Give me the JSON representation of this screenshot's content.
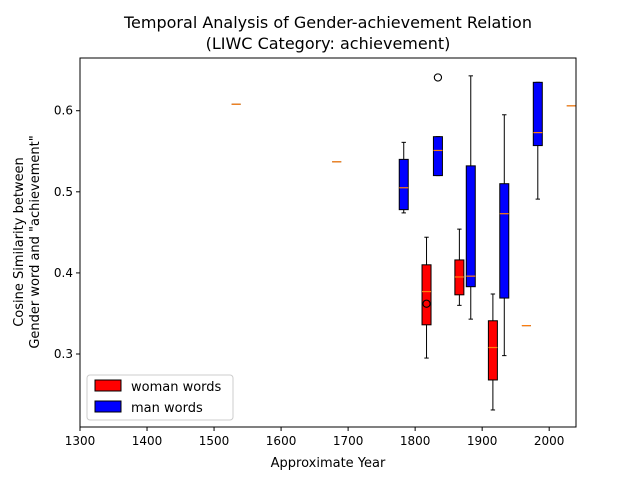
{
  "chart_data": {
    "type": "boxplot",
    "title_line1": "Temporal Analysis of Gender-achievement Relation",
    "title_line2": "(LIWC Category: achievement)",
    "xlabel": "Approximate Year",
    "ylabel_line1": "Cosine Similarity between",
    "ylabel_line2": "Gender word and \"achievement\"",
    "xlim": [
      1300,
      2040
    ],
    "ylim": [
      0.21,
      0.665
    ],
    "xticks": [
      "1300",
      "1400",
      "1500",
      "1600",
      "1700",
      "1800",
      "1900",
      "2000"
    ],
    "yticks": [
      "0.3",
      "0.4",
      "0.5",
      "0.6"
    ],
    "colors": {
      "woman": "#ff0000",
      "man": "#0000ff",
      "median": "#ff7f0e"
    },
    "legend": {
      "location": "lower-left",
      "entries": [
        {
          "label": "woman words",
          "color": "#ff0000"
        },
        {
          "label": "man words",
          "color": "#0000ff"
        }
      ]
    },
    "series": [
      {
        "name": "woman words",
        "boxes": [
          {
            "x": 1533,
            "whislo": 0.608,
            "q1": 0.608,
            "med": 0.608,
            "q3": 0.608,
            "whishi": 0.608,
            "fliers": []
          },
          {
            "x": 1683,
            "whislo": 0.537,
            "q1": 0.537,
            "med": 0.537,
            "q3": 0.537,
            "whishi": 0.537,
            "fliers": []
          },
          {
            "x": 1817,
            "whislo": 0.295,
            "q1": 0.336,
            "med": 0.377,
            "q3": 0.41,
            "whishi": 0.444,
            "fliers": [
              0.362
            ]
          },
          {
            "x": 1866,
            "whislo": 0.36,
            "q1": 0.373,
            "med": 0.395,
            "q3": 0.416,
            "whishi": 0.454,
            "fliers": []
          },
          {
            "x": 1916,
            "whislo": 0.231,
            "q1": 0.268,
            "med": 0.308,
            "q3": 0.341,
            "whishi": 0.374,
            "fliers": []
          },
          {
            "x": 1966,
            "whislo": 0.335,
            "q1": 0.335,
            "med": 0.335,
            "q3": 0.335,
            "whishi": 0.335,
            "fliers": []
          }
        ]
      },
      {
        "name": "man words",
        "boxes": [
          {
            "x": 1783,
            "whislo": 0.474,
            "q1": 0.478,
            "med": 0.505,
            "q3": 0.54,
            "whishi": 0.561,
            "fliers": []
          },
          {
            "x": 1834,
            "whislo": 0.52,
            "q1": 0.52,
            "med": 0.551,
            "q3": 0.568,
            "whishi": 0.568,
            "fliers": [
              0.641
            ]
          },
          {
            "x": 1883,
            "whislo": 0.343,
            "q1": 0.383,
            "med": 0.396,
            "q3": 0.532,
            "whishi": 0.643,
            "fliers": []
          },
          {
            "x": 1933,
            "whislo": 0.298,
            "q1": 0.369,
            "med": 0.473,
            "q3": 0.51,
            "whishi": 0.595,
            "fliers": []
          },
          {
            "x": 1983,
            "whislo": 0.491,
            "q1": 0.557,
            "med": 0.573,
            "q3": 0.635,
            "whishi": 0.635,
            "fliers": []
          },
          {
            "x": 2033,
            "whislo": 0.606,
            "q1": 0.606,
            "med": 0.606,
            "q3": 0.606,
            "whishi": 0.606,
            "fliers": []
          }
        ]
      }
    ]
  }
}
